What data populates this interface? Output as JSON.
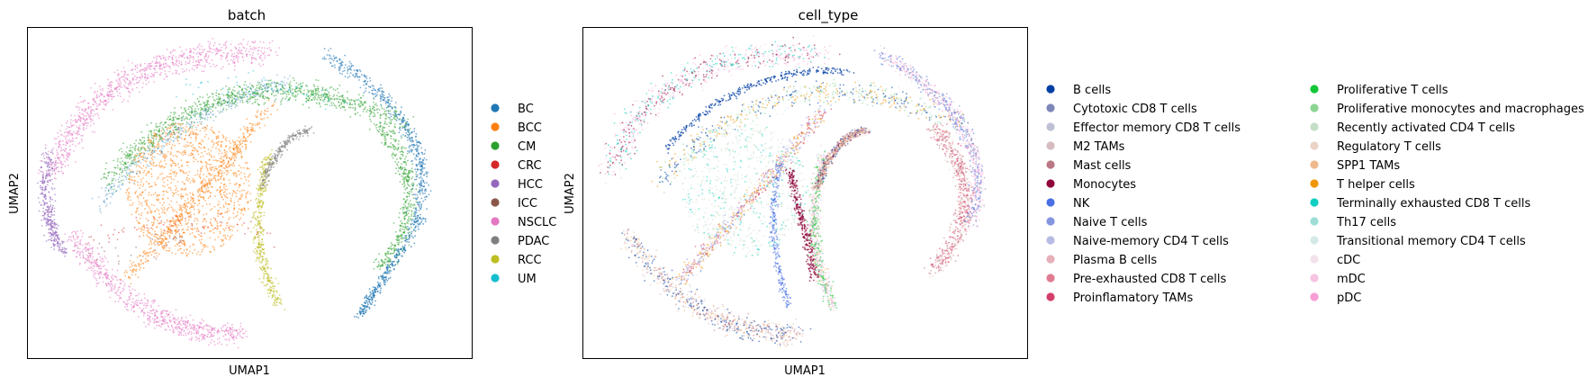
{
  "panels": [
    {
      "title": "batch",
      "xlabel": "UMAP1",
      "ylabel": "UMAP2",
      "legend": [
        {
          "label": "BC",
          "color": "#1f77b4"
        },
        {
          "label": "BCC",
          "color": "#ff7f0e"
        },
        {
          "label": "CM",
          "color": "#2ca02c"
        },
        {
          "label": "CRC",
          "color": "#d62728"
        },
        {
          "label": "HCC",
          "color": "#9467bd"
        },
        {
          "label": "ICC",
          "color": "#8c564b"
        },
        {
          "label": "NSCLC",
          "color": "#e377c2"
        },
        {
          "label": "PDAC",
          "color": "#7f7f7f"
        },
        {
          "label": "RCC",
          "color": "#bcbd22"
        },
        {
          "label": "UM",
          "color": "#17becf"
        }
      ]
    },
    {
      "title": "cell_type",
      "xlabel": "UMAP1",
      "ylabel": "UMAP2",
      "legend": [
        {
          "label": "B cells",
          "color": "#023fa5"
        },
        {
          "label": "Cytotoxic CD8 T cells",
          "color": "#7d87b9"
        },
        {
          "label": "Effector memory CD8 T cells",
          "color": "#bec1d4"
        },
        {
          "label": "M2 TAMs",
          "color": "#d6bcc0"
        },
        {
          "label": "Mast cells",
          "color": "#bb7784"
        },
        {
          "label": "Monocytes",
          "color": "#8e063b"
        },
        {
          "label": "NK",
          "color": "#4a6fe3"
        },
        {
          "label": "Naive T cells",
          "color": "#8595e1"
        },
        {
          "label": "Naive-memory CD4 T cells",
          "color": "#b5bbe3"
        },
        {
          "label": "Plasma B cells",
          "color": "#e6afb9"
        },
        {
          "label": "Pre-exhausted CD8 T cells",
          "color": "#e07b91"
        },
        {
          "label": "Proinflamatory TAMs",
          "color": "#d33f6a"
        },
        {
          "label": "Proliferative T cells",
          "color": "#11c638"
        },
        {
          "label": "Proliferative monocytes and macrophages",
          "color": "#8dd593"
        },
        {
          "label": "Recently activated CD4 T cells",
          "color": "#c6dec7"
        },
        {
          "label": "Regulatory T cells",
          "color": "#ead3c6"
        },
        {
          "label": "SPP1 TAMs",
          "color": "#f0b98d"
        },
        {
          "label": "T helper cells",
          "color": "#ef9708"
        },
        {
          "label": "Terminally exhausted CD8 T cells",
          "color": "#0fcfc0"
        },
        {
          "label": "Th17 cells",
          "color": "#9cded6"
        },
        {
          "label": "Transitional memory CD4 T cells",
          "color": "#d5eae7"
        },
        {
          "label": "cDC",
          "color": "#f3e1eb"
        },
        {
          "label": "mDC",
          "color": "#f6c4e1"
        },
        {
          "label": "pDC",
          "color": "#f79cd4"
        }
      ]
    }
  ],
  "chart_data": [
    {
      "type": "scatter",
      "title": "batch",
      "xlabel": "UMAP1",
      "ylabel": "UMAP2",
      "x_ticks": false,
      "y_ticks": false,
      "grid": false,
      "legend_position": "right",
      "legend_title": "",
      "series": [
        {
          "name": "BC",
          "color": "#1f77b4",
          "region": "outer right arc"
        },
        {
          "name": "BCC",
          "color": "#ff7f0e",
          "region": "center-left blob"
        },
        {
          "name": "CM",
          "color": "#2ca02c",
          "region": "upper arc"
        },
        {
          "name": "CRC",
          "color": "#d62728",
          "region": "sparse"
        },
        {
          "name": "HCC",
          "color": "#9467bd",
          "region": "far left"
        },
        {
          "name": "ICC",
          "color": "#8c564b",
          "region": "sparse"
        },
        {
          "name": "NSCLC",
          "color": "#e377c2",
          "region": "upper-left and lower arm"
        },
        {
          "name": "PDAC",
          "color": "#7f7f7f",
          "region": "small upper-right cluster"
        },
        {
          "name": "RCC",
          "color": "#bcbd22",
          "region": "central vertical stripe"
        },
        {
          "name": "UM",
          "color": "#17becf",
          "region": "sparse"
        }
      ]
    },
    {
      "type": "scatter",
      "title": "cell_type",
      "xlabel": "UMAP1",
      "ylabel": "UMAP2",
      "x_ticks": false,
      "y_ticks": false,
      "grid": false,
      "legend_position": "right",
      "legend_columns": 2,
      "series_count": 24
    }
  ]
}
